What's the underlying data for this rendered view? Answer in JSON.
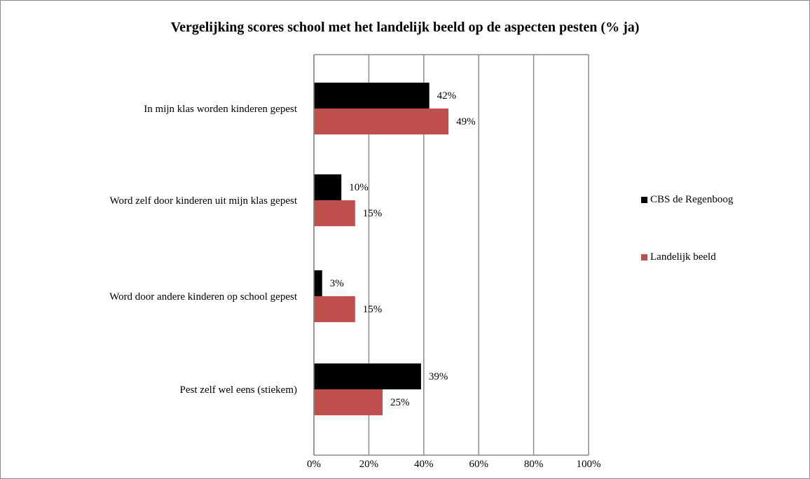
{
  "chart_data": {
    "type": "bar",
    "orientation": "horizontal",
    "title": "Vergelijking scores school met het landelijk beeld op de aspecten pesten (% ja)",
    "categories": [
      "In mijn klas worden kinderen gepest",
      "Word zelf door kinderen uit mijn klas gepest",
      "Word door andere kinderen op school gepest",
      "Pest zelf wel eens (stiekem)"
    ],
    "series": [
      {
        "name": "CBS de Regenboog",
        "color": "#000000",
        "values": [
          42,
          10,
          3,
          39
        ],
        "labels": [
          "42%",
          "10%",
          "3%",
          "39%"
        ]
      },
      {
        "name": "Landelijk beeld",
        "color": "#c0504d",
        "values": [
          49,
          15,
          15,
          25
        ],
        "labels": [
          "49%",
          "15%",
          "15%",
          "25%"
        ]
      }
    ],
    "xlim": [
      0,
      100
    ],
    "xticks": [
      "0%",
      "20%",
      "40%",
      "60%",
      "80%",
      "100%"
    ],
    "grid": true,
    "legend_position": "right"
  }
}
